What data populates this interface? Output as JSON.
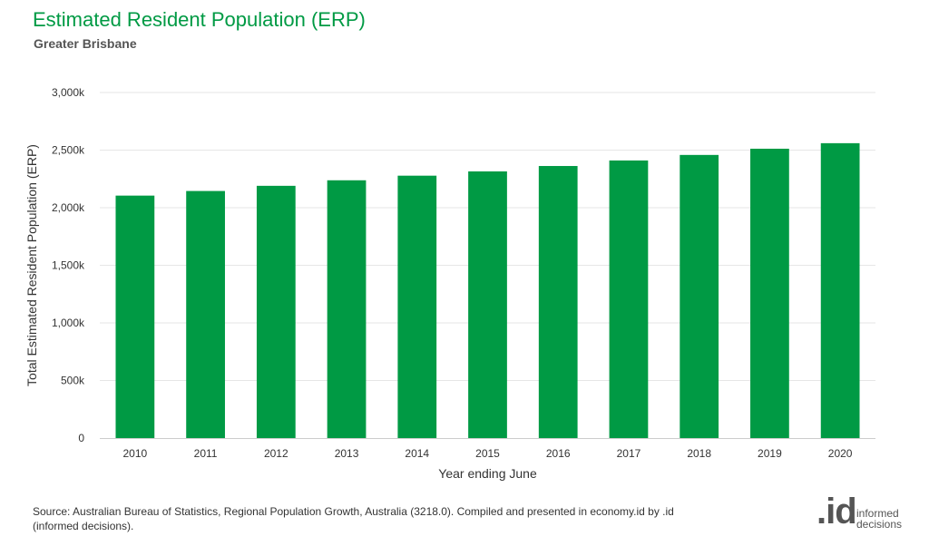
{
  "header": {
    "title": "Estimated Resident Population (ERP)",
    "subtitle": "Greater Brisbane"
  },
  "chart_data": {
    "type": "bar",
    "categories": [
      "2010",
      "2011",
      "2012",
      "2013",
      "2014",
      "2015",
      "2016",
      "2017",
      "2018",
      "2019",
      "2020"
    ],
    "values": [
      2105,
      2145,
      2190,
      2238,
      2278,
      2315,
      2362,
      2410,
      2458,
      2512,
      2560
    ],
    "value_unit": "thousand persons",
    "xlabel": "Year ending June",
    "ylabel": "Total Estimated Resident Population (ERP)",
    "ylim": [
      0,
      3000
    ],
    "yticks": [
      0,
      500,
      1000,
      1500,
      2000,
      2500,
      3000
    ],
    "ytick_labels": [
      "0",
      "500k",
      "1,000k",
      "1,500k",
      "2,000k",
      "2,500k",
      "3,000k"
    ],
    "grid": true,
    "legend": "none",
    "bar_color": "#009a44"
  },
  "footer": {
    "source": "Source: Australian Bureau of Statistics, Regional Population Growth, Australia (3218.0). Compiled and presented in economy.id by .id (informed decisions).",
    "logo_mark": ".id",
    "logo_text": "informed decisions"
  }
}
